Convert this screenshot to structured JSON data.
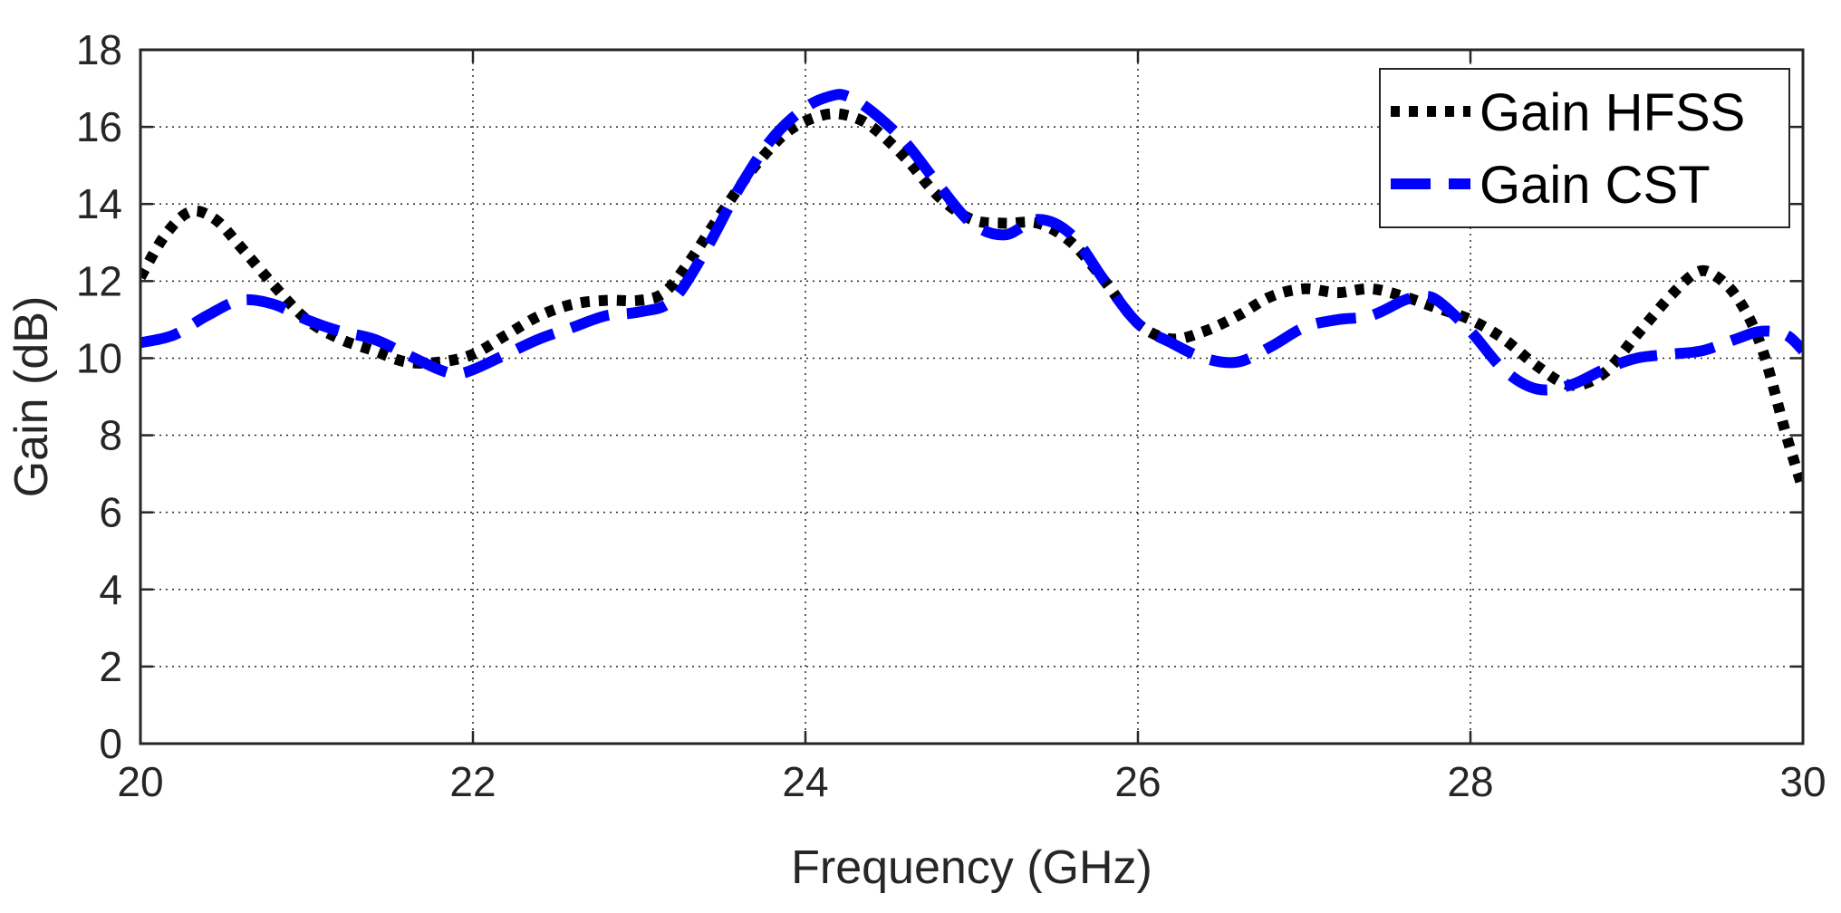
{
  "chart_data": {
    "type": "line",
    "xlabel": "Frequency (GHz)",
    "ylabel": "Gain (dB)",
    "xlim": [
      20,
      30
    ],
    "ylim": [
      0,
      18
    ],
    "xticks": [
      20,
      22,
      24,
      26,
      28,
      30
    ],
    "yticks": [
      0,
      2,
      4,
      6,
      8,
      10,
      12,
      14,
      16,
      18
    ],
    "grid": true,
    "legend_position": "top-right",
    "series": [
      {
        "name": "Gain HFSS",
        "color": "#000000",
        "style": "dotted",
        "x": [
          20.0,
          20.15,
          20.3,
          20.45,
          20.6,
          20.8,
          21.0,
          21.2,
          21.4,
          21.6,
          21.8,
          22.0,
          22.2,
          22.4,
          22.6,
          22.8,
          23.0,
          23.15,
          23.3,
          23.5,
          23.7,
          23.9,
          24.1,
          24.25,
          24.4,
          24.6,
          24.8,
          25.0,
          25.2,
          25.4,
          25.6,
          25.8,
          26.0,
          26.2,
          26.4,
          26.6,
          26.8,
          27.0,
          27.2,
          27.4,
          27.6,
          27.8,
          28.0,
          28.2,
          28.4,
          28.6,
          28.8,
          29.0,
          29.2,
          29.35,
          29.45,
          29.6,
          29.75,
          29.9,
          30.0
        ],
        "y": [
          12.1,
          13.2,
          13.8,
          13.6,
          12.9,
          11.9,
          11.0,
          10.5,
          10.2,
          9.9,
          9.9,
          10.1,
          10.6,
          11.1,
          11.4,
          11.5,
          11.5,
          11.7,
          12.5,
          13.8,
          15.0,
          15.9,
          16.3,
          16.3,
          16.0,
          15.2,
          14.2,
          13.6,
          13.5,
          13.5,
          13.0,
          12.0,
          10.9,
          10.5,
          10.7,
          11.1,
          11.6,
          11.8,
          11.7,
          11.8,
          11.6,
          11.3,
          11.0,
          10.5,
          9.8,
          9.3,
          9.6,
          10.6,
          11.6,
          12.2,
          12.2,
          11.6,
          10.3,
          8.0,
          6.6
        ]
      },
      {
        "name": "Gain CST",
        "color": "#0000ff",
        "style": "dashed",
        "x": [
          20.0,
          20.2,
          20.4,
          20.6,
          20.8,
          21.0,
          21.2,
          21.4,
          21.6,
          21.8,
          21.9,
          22.0,
          22.2,
          22.4,
          22.6,
          22.8,
          23.0,
          23.2,
          23.4,
          23.6,
          23.8,
          24.0,
          24.15,
          24.25,
          24.4,
          24.6,
          24.8,
          25.0,
          25.2,
          25.4,
          25.6,
          25.8,
          26.0,
          26.2,
          26.4,
          26.6,
          26.8,
          27.0,
          27.2,
          27.4,
          27.6,
          27.7,
          27.8,
          28.0,
          28.2,
          28.4,
          28.6,
          28.8,
          29.0,
          29.2,
          29.4,
          29.6,
          29.75,
          29.9,
          30.0
        ],
        "y": [
          10.4,
          10.6,
          11.1,
          11.5,
          11.4,
          11.0,
          10.7,
          10.5,
          10.1,
          9.7,
          9.6,
          9.7,
          10.1,
          10.5,
          10.8,
          11.1,
          11.2,
          11.5,
          12.8,
          14.4,
          15.7,
          16.5,
          16.8,
          16.8,
          16.4,
          15.6,
          14.5,
          13.5,
          13.2,
          13.6,
          13.2,
          12.0,
          10.9,
          10.4,
          10.0,
          9.9,
          10.3,
          10.8,
          11.0,
          11.1,
          11.5,
          11.6,
          11.5,
          10.7,
          9.7,
          9.2,
          9.3,
          9.7,
          10.0,
          10.1,
          10.2,
          10.5,
          10.7,
          10.6,
          10.2
        ]
      }
    ]
  }
}
